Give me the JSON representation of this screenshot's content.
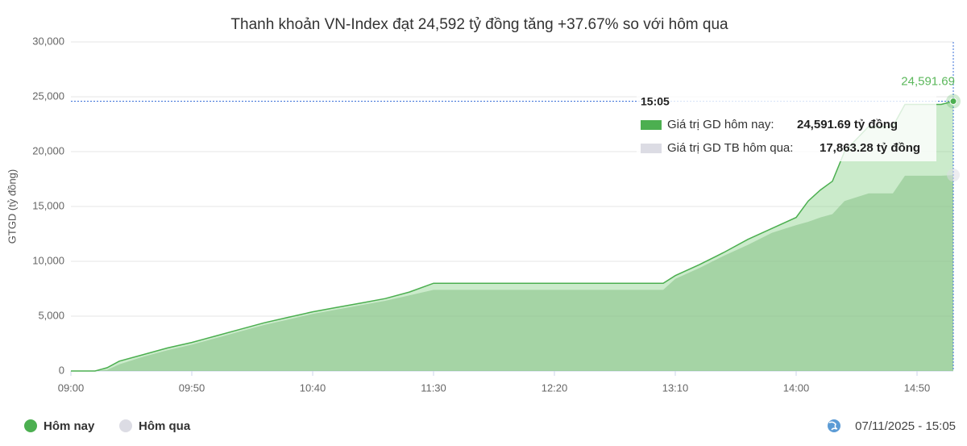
{
  "chart_data": {
    "type": "area",
    "title": "Thanh khoản VN-Index đạt 24,592 tỷ đồng tăng +37.67% so với hôm qua",
    "y_label": "GTGD (tỷ đồng)",
    "x": [
      "09:00",
      "09:10",
      "09:15",
      "09:20",
      "09:30",
      "09:40",
      "09:50",
      "10:00",
      "10:10",
      "10:20",
      "10:30",
      "10:40",
      "10:50",
      "11:00",
      "11:10",
      "11:20",
      "11:30",
      "13:05",
      "13:10",
      "13:20",
      "13:30",
      "13:40",
      "13:50",
      "14:00",
      "14:05",
      "14:10",
      "14:15",
      "14:20",
      "14:30",
      "14:40",
      "14:45",
      "15:00",
      "15:05"
    ],
    "series": [
      {
        "name": "Hôm nay",
        "color": "#4caf50",
        "values": [
          0,
          0,
          300,
          900,
          1500,
          2100,
          2600,
          3200,
          3800,
          4400,
          4900,
          5400,
          5800,
          6200,
          6600,
          7200,
          8000,
          8000,
          8700,
          9700,
          10800,
          12000,
          13000,
          14000,
          15500,
          16500,
          17300,
          20000,
          22300,
          22300,
          24300,
          24300,
          24591.69
        ],
        "value_labels": [
          null,
          null,
          null,
          null,
          null,
          null,
          null,
          null,
          null,
          null,
          null,
          null,
          null,
          null,
          null,
          null,
          null,
          null,
          null,
          null,
          null,
          null,
          null,
          null,
          null,
          null,
          null,
          null,
          null,
          null,
          null,
          null,
          "24,591.69"
        ]
      },
      {
        "name": "Hôm qua",
        "color": "#dcdce4",
        "values": [
          0,
          0,
          100,
          600,
          1300,
          1900,
          2400,
          3000,
          3600,
          4200,
          4700,
          5200,
          5600,
          6000,
          6400,
          6900,
          7400,
          7400,
          8400,
          9400,
          10500,
          11500,
          12600,
          13300,
          13600,
          14000,
          14300,
          15500,
          16200,
          16200,
          17800,
          17800,
          17863.28
        ]
      }
    ],
    "xlim": [
      "09:00",
      "15:05"
    ],
    "xticks": [
      "09:00",
      "09:50",
      "10:40",
      "11:30",
      "12:20",
      "13:10",
      "14:00",
      "14:50"
    ],
    "ylim": [
      0,
      30000
    ],
    "yticks": [
      0,
      {
        "value": 5000,
        "label": "5,000"
      },
      {
        "value": 10000,
        "label": "10,000"
      },
      {
        "value": 15000,
        "label": "15,000"
      },
      {
        "value": 20000,
        "label": "20,000"
      },
      {
        "value": 25000,
        "label": "25,000"
      },
      {
        "value": 30000,
        "label": "30,000"
      }
    ],
    "grid": true,
    "tooltip": {
      "time": "15:05",
      "rows": [
        {
          "label": "Giá trị GD hôm nay:",
          "value": "24,591.69 tỷ đồng"
        },
        {
          "label": "Giá trị GD TB hôm qua:",
          "value": "17,863.28 tỷ đồng"
        }
      ]
    },
    "timestamp": "07/11/2025 - 15:05"
  }
}
